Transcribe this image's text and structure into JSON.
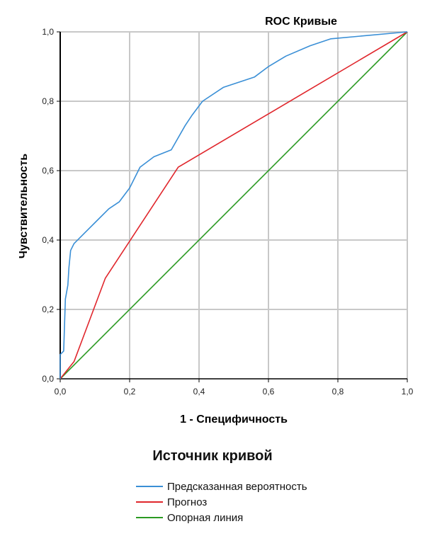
{
  "chart_data": {
    "type": "line",
    "title": "ROC Кривые",
    "xlabel": "1 - Специфичность",
    "ylabel": "Чувствительность",
    "xlim": [
      0,
      1
    ],
    "ylim": [
      0,
      1
    ],
    "xticks": [
      "0,0",
      "0,2",
      "0,4",
      "0,6",
      "0,8",
      "1,0"
    ],
    "yticks": [
      "0,0",
      "0,2",
      "0,4",
      "0,6",
      "0,8",
      "1,0"
    ],
    "grid": true,
    "legend_title": "Источник кривой",
    "legend_position": "bottom",
    "series": [
      {
        "name": "Предсказанная вероятность",
        "color": "#3a8fd6",
        "x": [
          0,
          0.0,
          0.01,
          0.01,
          0.015,
          0.015,
          0.022,
          0.025,
          0.03,
          0.04,
          0.07,
          0.1,
          0.14,
          0.17,
          0.2,
          0.23,
          0.27,
          0.32,
          0.36,
          0.38,
          0.41,
          0.47,
          0.56,
          0.6,
          0.65,
          0.72,
          0.78,
          1.0
        ],
        "y": [
          0,
          0.07,
          0.08,
          0.08,
          0.23,
          0.23,
          0.27,
          0.32,
          0.37,
          0.39,
          0.42,
          0.45,
          0.49,
          0.51,
          0.55,
          0.61,
          0.64,
          0.66,
          0.73,
          0.76,
          0.8,
          0.84,
          0.87,
          0.9,
          0.93,
          0.96,
          0.98,
          1.0
        ]
      },
      {
        "name": "Прогноз",
        "color": "#e0262c",
        "x": [
          0,
          0.04,
          0.13,
          0.34,
          1.0
        ],
        "y": [
          0,
          0.05,
          0.29,
          0.61,
          1.0
        ]
      },
      {
        "name": "Опорная линия",
        "color": "#2a9a22",
        "x": [
          0,
          1
        ],
        "y": [
          0,
          1
        ]
      }
    ]
  }
}
